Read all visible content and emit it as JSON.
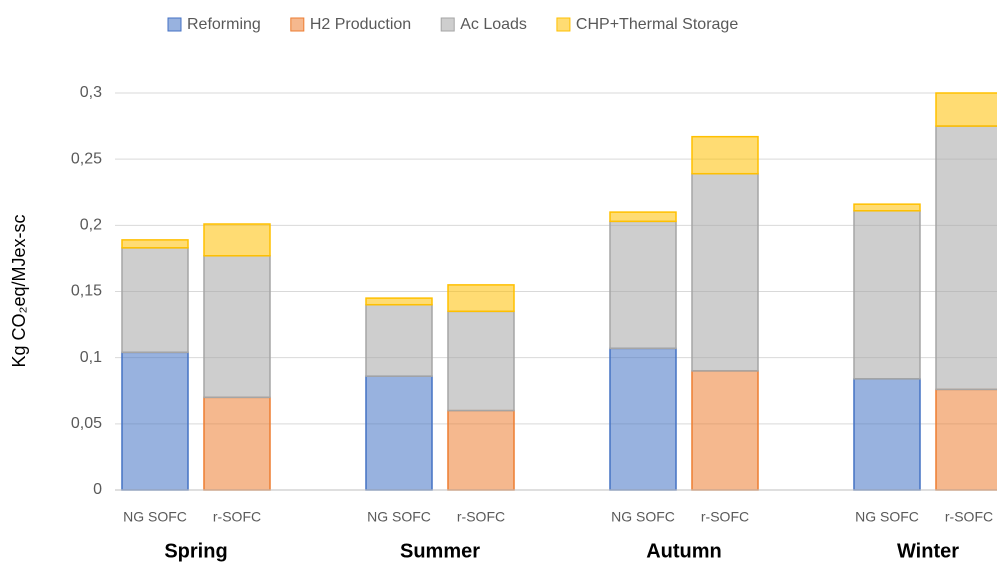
{
  "chart_data": {
    "type": "stacked-bar",
    "y_label": "Kg CO₂eq/MJex-sc",
    "categories": [
      "NG SOFC",
      "r-SOFC",
      "NG SOFC",
      "r-SOFC",
      "NG SOFC",
      "r-SOFC",
      "NG SOFC",
      "r-SOFC"
    ],
    "groups": [
      "Spring",
      "Summer",
      "Autumn",
      "Winter"
    ],
    "series": [
      {
        "name": "Reforming",
        "color": "#4472c4",
        "values": [
          0.104,
          null,
          0.086,
          null,
          0.107,
          null,
          0.084,
          null
        ]
      },
      {
        "name": "H2 Production",
        "color": "#ed7d31",
        "values": [
          null,
          0.07,
          null,
          0.06,
          null,
          0.09,
          null,
          0.076
        ]
      },
      {
        "name": "Ac Loads",
        "color": "#a5a5a5",
        "values": [
          0.079,
          0.107,
          0.054,
          0.075,
          0.096,
          0.149,
          0.127,
          0.199
        ]
      },
      {
        "name": "CHP+Thermal Storage",
        "color": "#ffc000",
        "values": [
          0.006,
          0.024,
          0.005,
          0.02,
          0.007,
          0.028,
          0.005,
          0.025
        ]
      }
    ],
    "ylim": [
      0,
      0.3
    ],
    "yticks": [
      0,
      {
        "value": 0.05,
        "label": "0,05"
      },
      {
        "value": 0.1,
        "label": "0,1"
      },
      {
        "value": 0.15,
        "label": "0,15"
      },
      {
        "value": 0.2,
        "label": "0,2"
      },
      {
        "value": 0.25,
        "label": "0,25"
      },
      {
        "value": 0.3,
        "label": "0,3"
      }
    ],
    "grid": true,
    "legend": "top"
  }
}
